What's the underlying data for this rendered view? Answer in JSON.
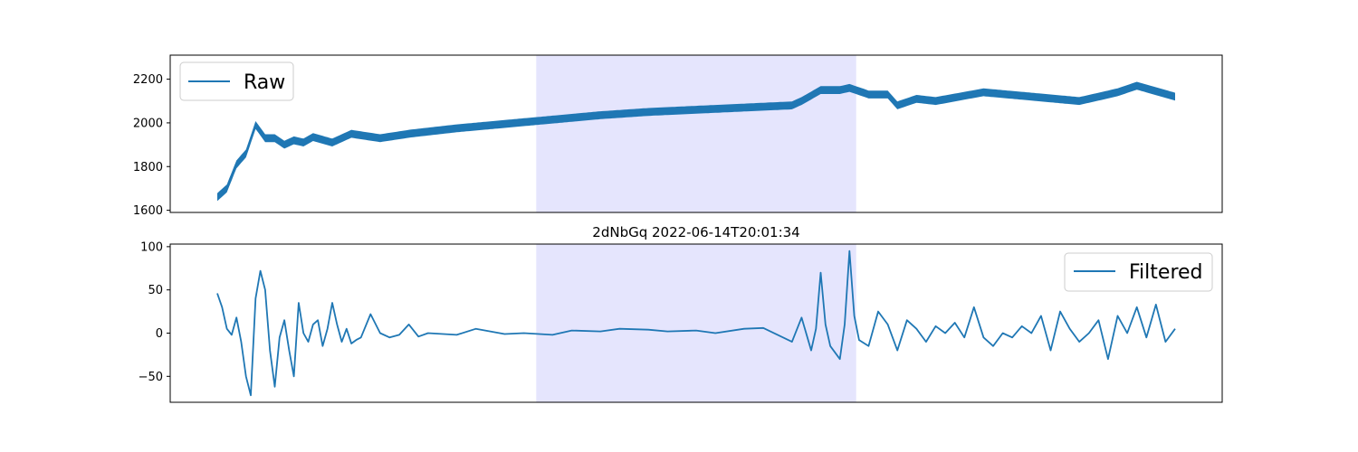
{
  "chart_data": [
    {
      "type": "line",
      "title": "",
      "xlabel": "",
      "ylabel": "",
      "x_ticks_visible": false,
      "ylim": [
        1590,
        2310
      ],
      "yticks": [
        1600,
        1800,
        2000,
        2200
      ],
      "highlight_span": [
        0.333,
        0.667
      ],
      "highlight_color": "#e5e5fd",
      "legend": {
        "placement": "top-left",
        "entries": [
          "Raw"
        ]
      },
      "series": [
        {
          "name": "Raw",
          "color": "#1f77b4",
          "band_width": 36,
          "x": [
            0.0,
            0.01,
            0.02,
            0.03,
            0.04,
            0.05,
            0.06,
            0.07,
            0.08,
            0.09,
            0.1,
            0.12,
            0.14,
            0.17,
            0.2,
            0.25,
            0.3,
            0.35,
            0.4,
            0.45,
            0.5,
            0.55,
            0.6,
            0.61,
            0.63,
            0.65,
            0.66,
            0.68,
            0.7,
            0.71,
            0.73,
            0.75,
            0.8,
            0.85,
            0.9,
            0.94,
            0.96,
            1.0
          ],
          "y": [
            1660,
            1700,
            1810,
            1860,
            1990,
            1930,
            1930,
            1900,
            1920,
            1910,
            1935,
            1910,
            1950,
            1930,
            1950,
            1975,
            1995,
            2015,
            2035,
            2050,
            2060,
            2070,
            2080,
            2100,
            2150,
            2150,
            2160,
            2130,
            2130,
            2080,
            2110,
            2100,
            2140,
            2120,
            2100,
            2140,
            2170,
            2120
          ]
        }
      ]
    },
    {
      "type": "line",
      "title": "2dNbGq 2022-06-14T20:01:34",
      "xlabel": "",
      "ylabel": "",
      "x_ticks_visible": false,
      "ylim": [
        -80,
        103
      ],
      "yticks": [
        -50,
        0,
        50,
        100
      ],
      "highlight_span": [
        0.333,
        0.667
      ],
      "highlight_color": "#e5e5fd",
      "legend": {
        "placement": "top-right",
        "entries": [
          "Filtered"
        ]
      },
      "series": [
        {
          "name": "Filtered",
          "color": "#1f77b4",
          "x": [
            0.0,
            0.005,
            0.01,
            0.015,
            0.02,
            0.025,
            0.03,
            0.035,
            0.04,
            0.045,
            0.05,
            0.055,
            0.06,
            0.065,
            0.07,
            0.075,
            0.08,
            0.085,
            0.09,
            0.095,
            0.1,
            0.105,
            0.11,
            0.115,
            0.12,
            0.125,
            0.13,
            0.135,
            0.14,
            0.145,
            0.15,
            0.16,
            0.17,
            0.18,
            0.19,
            0.2,
            0.21,
            0.22,
            0.25,
            0.27,
            0.3,
            0.32,
            0.35,
            0.37,
            0.4,
            0.42,
            0.45,
            0.47,
            0.5,
            0.52,
            0.55,
            0.57,
            0.6,
            0.61,
            0.62,
            0.625,
            0.63,
            0.635,
            0.64,
            0.65,
            0.655,
            0.66,
            0.665,
            0.67,
            0.68,
            0.69,
            0.7,
            0.71,
            0.72,
            0.73,
            0.74,
            0.75,
            0.76,
            0.77,
            0.78,
            0.79,
            0.8,
            0.81,
            0.82,
            0.83,
            0.84,
            0.85,
            0.86,
            0.87,
            0.88,
            0.89,
            0.9,
            0.91,
            0.92,
            0.93,
            0.94,
            0.95,
            0.96,
            0.97,
            0.98,
            0.99,
            1.0
          ],
          "y": [
            46,
            30,
            5,
            -2,
            18,
            -10,
            -50,
            -72,
            40,
            72,
            50,
            -20,
            -62,
            -5,
            15,
            -20,
            -50,
            35,
            0,
            -10,
            10,
            15,
            -15,
            5,
            35,
            10,
            -10,
            5,
            -12,
            -8,
            -5,
            22,
            0,
            -5,
            -2,
            10,
            -4,
            0,
            -2,
            5,
            -1,
            0,
            -2,
            3,
            2,
            5,
            4,
            2,
            3,
            0,
            5,
            6,
            -10,
            18,
            -20,
            5,
            70,
            10,
            -15,
            -30,
            10,
            95,
            20,
            -8,
            -15,
            25,
            10,
            -20,
            15,
            5,
            -10,
            8,
            0,
            12,
            -5,
            30,
            -5,
            -15,
            0,
            -5,
            8,
            0,
            20,
            -20,
            25,
            5,
            -10,
            0,
            15,
            -30,
            20,
            0,
            30,
            -5,
            33,
            -10,
            5
          ]
        }
      ]
    }
  ]
}
